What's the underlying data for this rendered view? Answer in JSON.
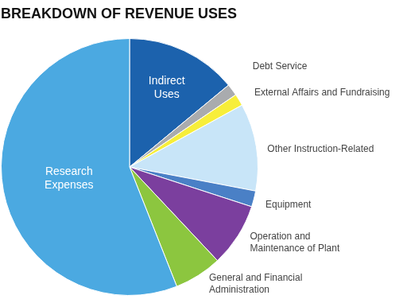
{
  "chart_data": {
    "type": "pie",
    "title": "BREAKDOWN OF REVENUE USES",
    "categories": [
      "Indirect Uses",
      "Debt Service",
      "External Affairs and Fundraising",
      "Other Instruction-Related",
      "Equipment",
      "Operation and Maintenance of Plant",
      "General and Financial Administration",
      "Research Expenses"
    ],
    "values": [
      14,
      1.5,
      1.5,
      11,
      2,
      8,
      6,
      56
    ],
    "colors": [
      "#1c62ad",
      "#a9abae",
      "#f7ee3a",
      "#c8e5f8",
      "#4a80c6",
      "#7b3f9e",
      "#8cc63f",
      "#4ba9e1"
    ]
  }
}
